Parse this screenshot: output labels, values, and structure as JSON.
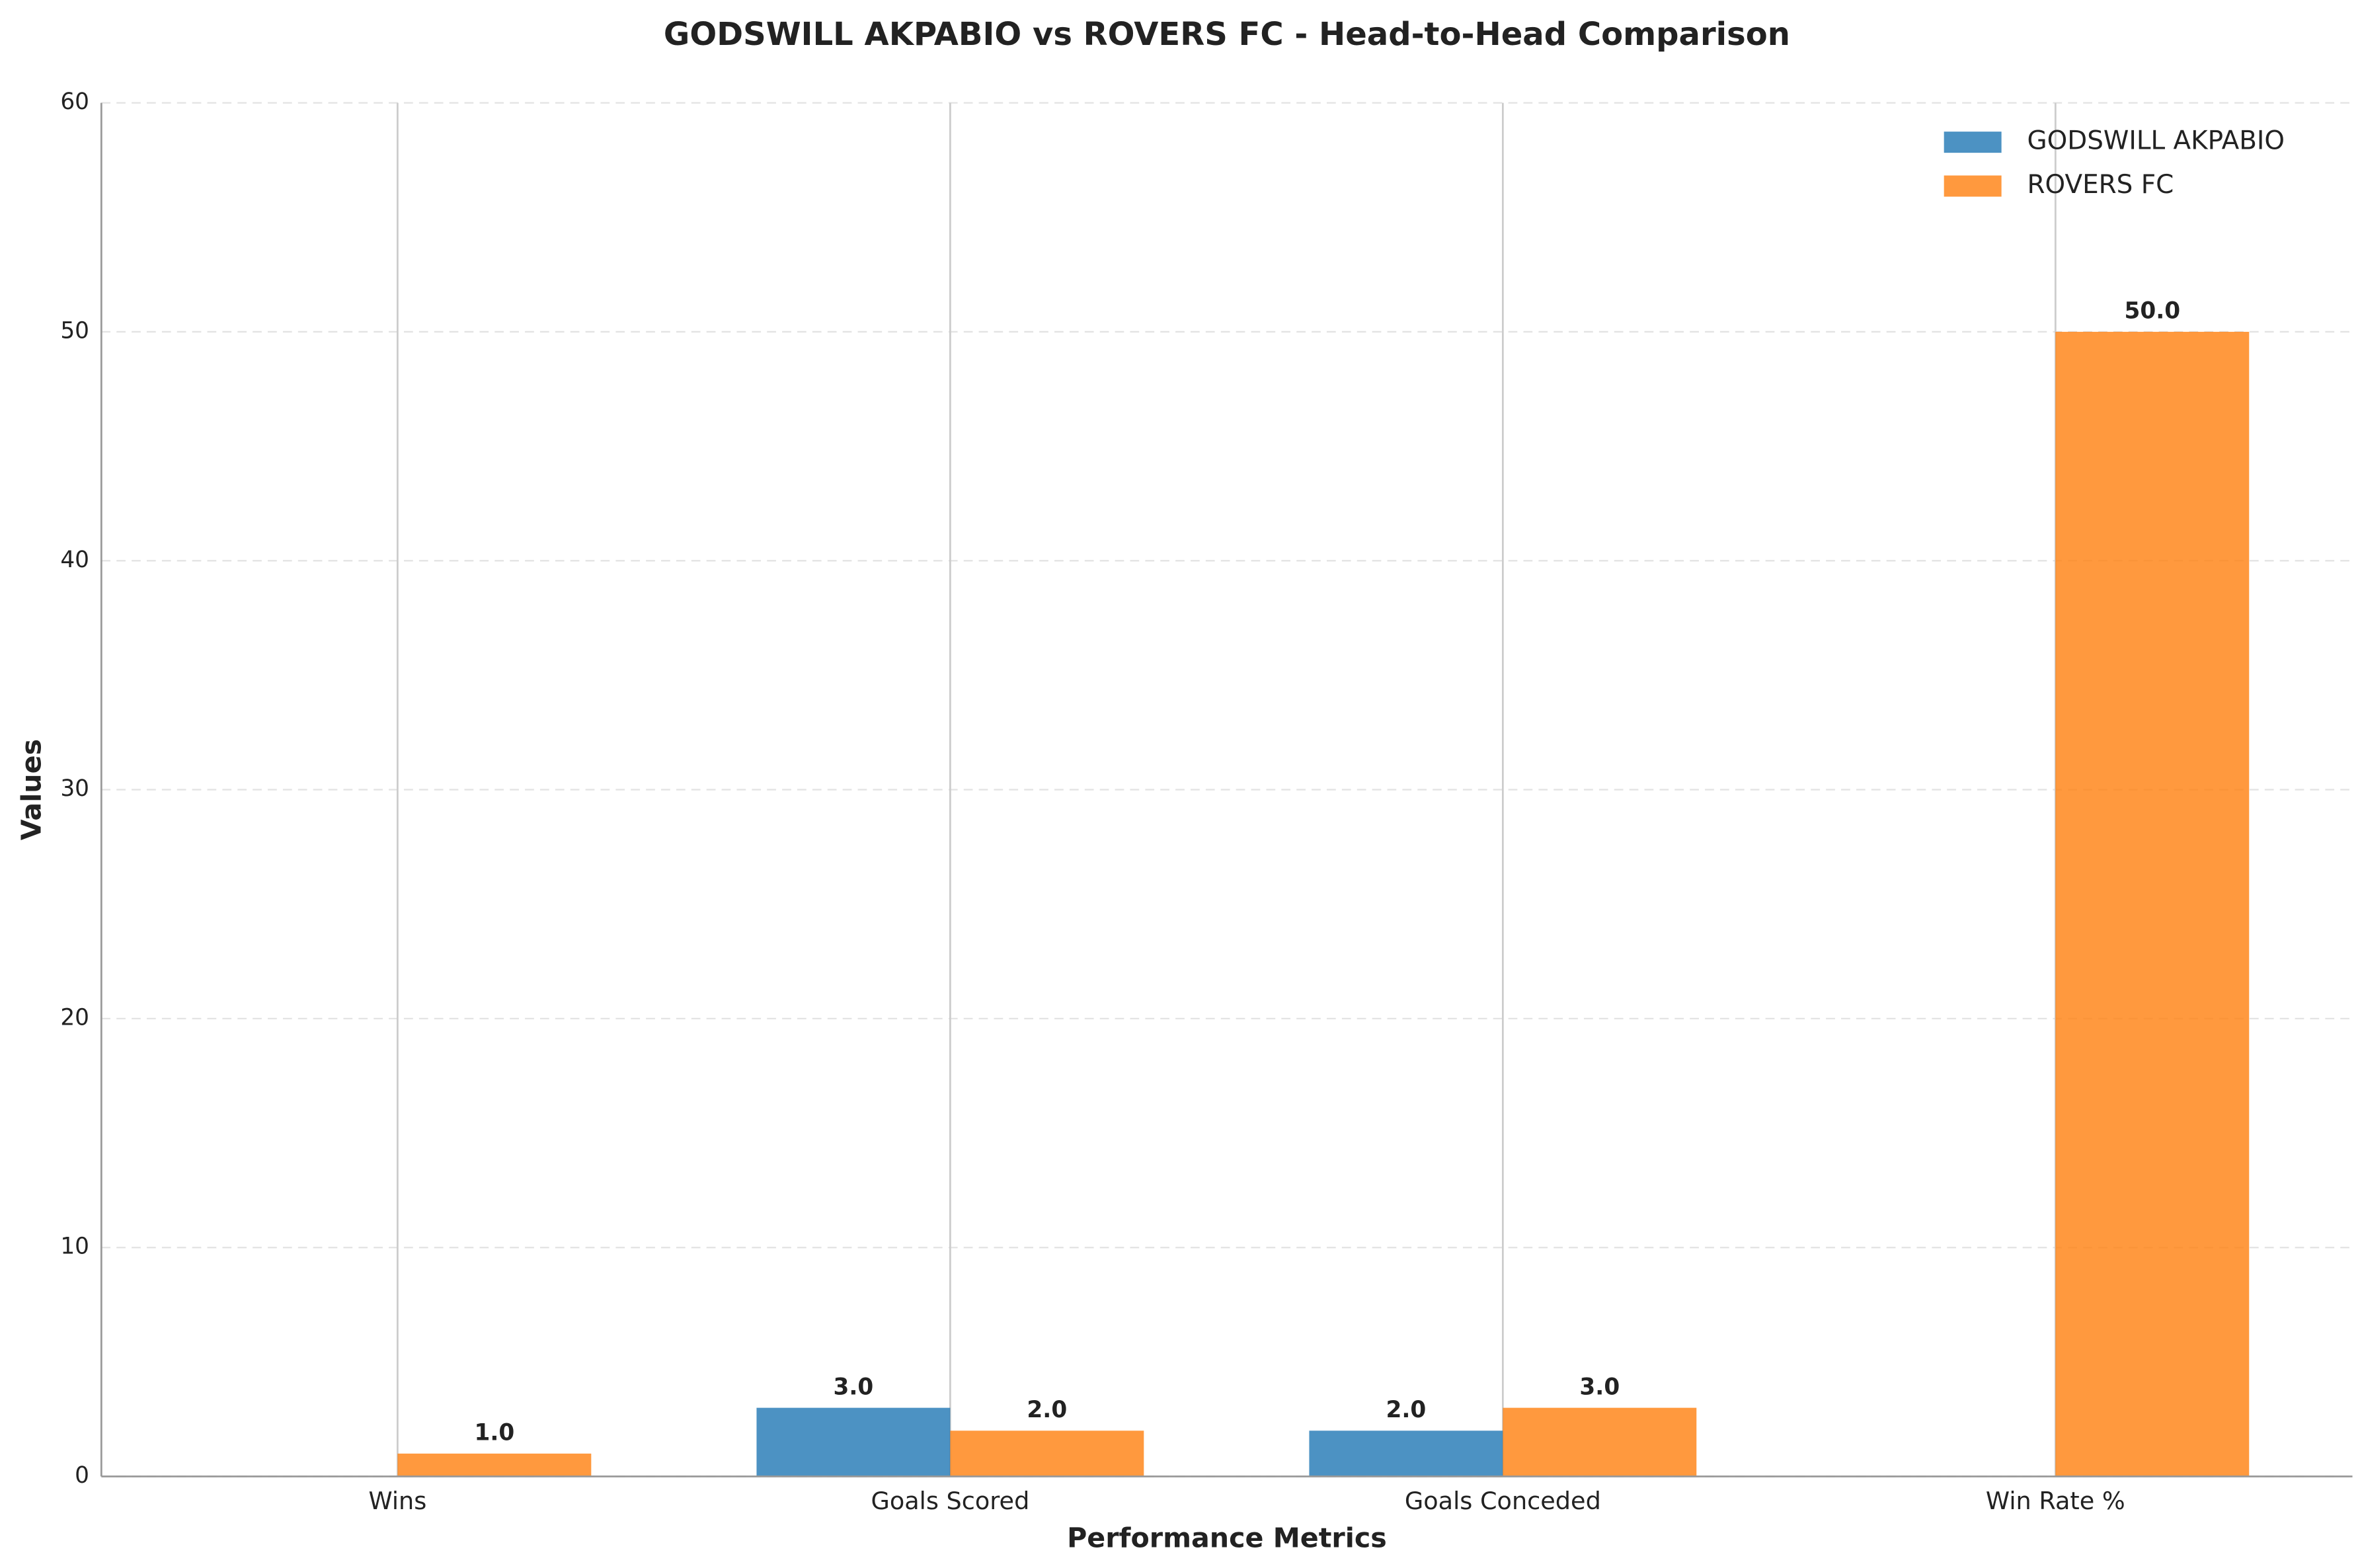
{
  "chart_data": {
    "type": "bar",
    "title": "GODSWILL AKPABIO vs ROVERS FC - Head-to-Head Comparison",
    "xlabel": "Performance Metrics",
    "ylabel": "Values",
    "categories": [
      "Wins",
      "Goals Scored",
      "Goals Conceded",
      "Win Rate %"
    ],
    "series": [
      {
        "name": "GODSWILL AKPABIO",
        "color": "#1f77b4",
        "values": [
          0,
          3,
          2,
          0
        ],
        "value_labels": [
          null,
          "3.0",
          "2.0",
          null
        ]
      },
      {
        "name": "ROVERS FC",
        "color": "#ff7f0e",
        "values": [
          1,
          2,
          3,
          50
        ],
        "value_labels": [
          "1.0",
          "2.0",
          "3.0",
          "50.0"
        ]
      }
    ],
    "ylim": [
      0,
      60
    ],
    "yticks": [
      0,
      10,
      20,
      30,
      40,
      50,
      60
    ],
    "grid": true,
    "legend": "upper right"
  }
}
